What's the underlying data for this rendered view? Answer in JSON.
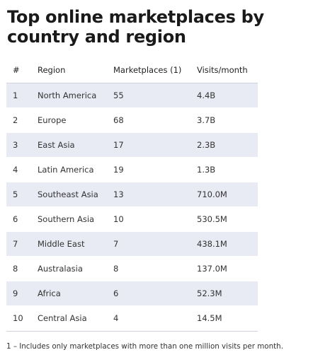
{
  "title": "Top online marketplaces by country and region",
  "table": {
    "headers": [
      "#",
      "Region",
      "Marketplaces (1)",
      "Visits/month"
    ],
    "rows": [
      {
        "rank": "1",
        "region": "North America",
        "marketplaces": "55",
        "visits": "4.4B"
      },
      {
        "rank": "2",
        "region": "Europe",
        "marketplaces": "68",
        "visits": "3.7B"
      },
      {
        "rank": "3",
        "region": "East Asia",
        "marketplaces": "17",
        "visits": "2.3B"
      },
      {
        "rank": "4",
        "region": "Latin America",
        "marketplaces": "19",
        "visits": "1.3B"
      },
      {
        "rank": "5",
        "region": "Southeast Asia",
        "marketplaces": "13",
        "visits": "710.0M"
      },
      {
        "rank": "6",
        "region": "Southern Asia",
        "marketplaces": "10",
        "visits": "530.5M"
      },
      {
        "rank": "7",
        "region": "Middle East",
        "marketplaces": "7",
        "visits": "438.1M"
      },
      {
        "rank": "8",
        "region": "Australasia",
        "marketplaces": "8",
        "visits": "137.0M"
      },
      {
        "rank": "9",
        "region": "Africa",
        "marketplaces": "6",
        "visits": "52.3M"
      },
      {
        "rank": "10",
        "region": "Central Asia",
        "marketplaces": "4",
        "visits": "14.5M"
      }
    ]
  },
  "footnote": "1 – Includes only marketplaces with more than one million visits per month.",
  "colors": {
    "stripe": "#e9ebf4",
    "text": "#333333",
    "title": "#1a1a1a"
  }
}
